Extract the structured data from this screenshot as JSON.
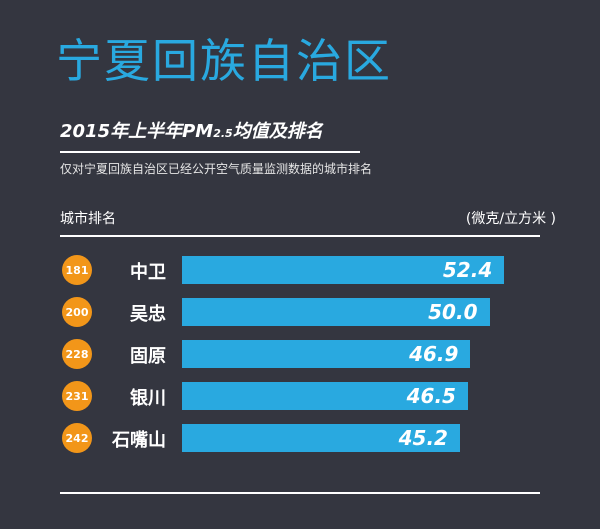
{
  "header": {
    "title": "宁夏回族自治区",
    "subtitle_main": "2015年上半年PM",
    "subtitle_sub": "2.5",
    "subtitle_tail": "均值及排名",
    "note": "仅对宁夏回族自治区已经公开空气质量监测数据的城市排名",
    "col_left": "城市排名",
    "col_right": "(微克/立方米 )"
  },
  "colors": {
    "background": "#343640",
    "title": "#29a9e0",
    "bar": "#29a9e0",
    "rank_badge": "#f29619"
  },
  "chart_data": {
    "type": "bar",
    "orientation": "horizontal",
    "title": "2015年上半年PM2.5均值及排名",
    "categories": [
      "中卫",
      "吴忠",
      "固原",
      "银川",
      "石嘴山"
    ],
    "ranks": [
      "181",
      "200",
      "228",
      "231",
      "242"
    ],
    "values": [
      52.4,
      50.0,
      46.9,
      46.5,
      45.2
    ],
    "value_labels": [
      "52.4",
      "50.0",
      "46.9",
      "46.5",
      "45.2"
    ],
    "xlabel": "",
    "ylabel": "城市排名",
    "unit": "(微克/立方米 )",
    "grid": false,
    "legend": "none"
  }
}
